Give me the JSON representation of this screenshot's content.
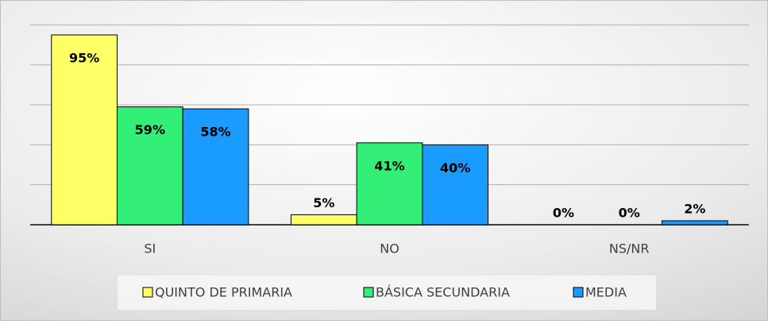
{
  "chart_data": {
    "type": "bar",
    "categories": [
      "SI",
      "NO",
      "NS/NR"
    ],
    "series": [
      {
        "name": "QUINTO DE PRIMARIA",
        "color": "#ffff66",
        "values": [
          95,
          5,
          0
        ],
        "value_labels": [
          "95%",
          "5%",
          "0%"
        ]
      },
      {
        "name": "BÁSICA SECUNDARIA",
        "color": "#33ee77",
        "values": [
          59,
          41,
          0
        ],
        "value_labels": [
          "59%",
          "41%",
          "0%"
        ]
      },
      {
        "name": "MEDIA",
        "color": "#1a9bff",
        "values": [
          58,
          40,
          2
        ],
        "value_labels": [
          "58%",
          "40%",
          "2%"
        ]
      }
    ],
    "ylim": [
      0,
      100
    ],
    "yticks": [
      0,
      20,
      40,
      60,
      80,
      100
    ],
    "grid": true,
    "legend": "bottom"
  }
}
